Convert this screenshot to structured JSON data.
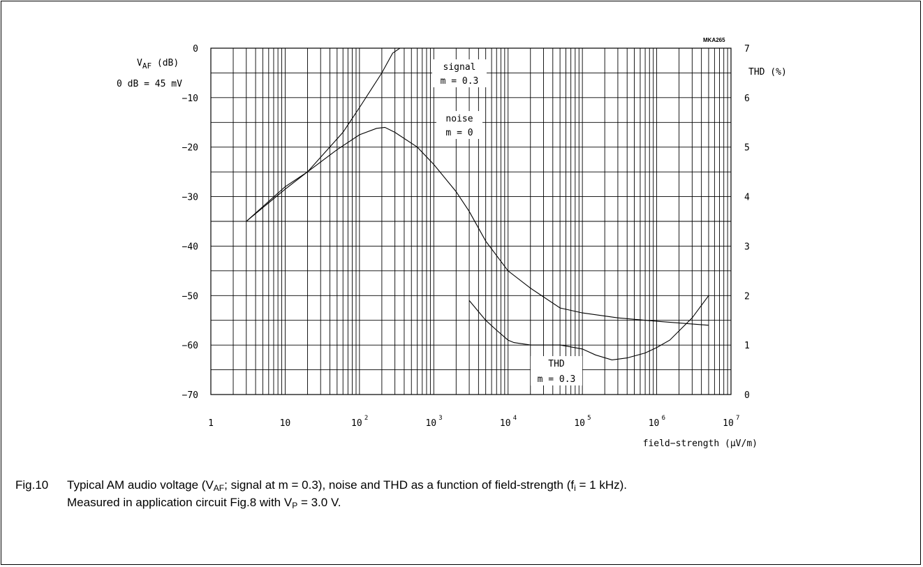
{
  "chart_data": {
    "type": "line",
    "code": "MKA265",
    "xlabel": "field−strength (µV/m)",
    "xscale": "log",
    "xlim": [
      1,
      10000000
    ],
    "x_ticks": [
      {
        "value": 1,
        "base": "1",
        "exp": ""
      },
      {
        "value": 10,
        "base": "10",
        "exp": ""
      },
      {
        "value": 100,
        "base": "10",
        "exp": "2"
      },
      {
        "value": 1000,
        "base": "10",
        "exp": "3"
      },
      {
        "value": 10000,
        "base": "10",
        "exp": "4"
      },
      {
        "value": 100000,
        "base": "10",
        "exp": "5"
      },
      {
        "value": 1000000,
        "base": "10",
        "exp": "6"
      },
      {
        "value": 10000000,
        "base": "10",
        "exp": "7"
      }
    ],
    "ylabel_left": {
      "main": "V",
      "sub": "AF",
      "unit": " (dB)"
    },
    "ylabel_left_note": "0 dB = 45 mV",
    "ylim_left": [
      -70,
      0
    ],
    "y_ticks_left": [
      "0",
      "−10",
      "−20",
      "−30",
      "−40",
      "−50",
      "−60",
      "−70"
    ],
    "ylabel_right": "THD (%)",
    "ylim_right": [
      0,
      7
    ],
    "y_ticks_right": [
      "7",
      "6",
      "5",
      "4",
      "3",
      "2",
      "1",
      "0"
    ],
    "grid": true,
    "series": [
      {
        "name": "signal",
        "label_lines": [
          "signal",
          "m = 0.3"
        ],
        "axis": "left",
        "points": [
          [
            3,
            -35
          ],
          [
            10,
            -28
          ],
          [
            20,
            -25
          ],
          [
            60,
            -17
          ],
          [
            100,
            -12
          ],
          [
            200,
            -5
          ],
          [
            280,
            -1
          ],
          [
            350,
            0
          ],
          [
            1000,
            0
          ],
          [
            10000,
            0
          ],
          [
            100000,
            0
          ],
          [
            1000000,
            0
          ],
          [
            5000000,
            0
          ]
        ]
      },
      {
        "name": "noise",
        "label_lines": [
          "noise",
          "m = 0"
        ],
        "axis": "left",
        "points": [
          [
            3,
            -35
          ],
          [
            10,
            -28.5
          ],
          [
            20,
            -25
          ],
          [
            50,
            -20.5
          ],
          [
            100,
            -17.5
          ],
          [
            170,
            -16.2
          ],
          [
            220,
            -16
          ],
          [
            300,
            -17
          ],
          [
            600,
            -20
          ],
          [
            1000,
            -23.5
          ],
          [
            2000,
            -29
          ],
          [
            3000,
            -33
          ],
          [
            5000,
            -39
          ],
          [
            10000,
            -45
          ],
          [
            20000,
            -48.5
          ],
          [
            50000,
            -52.5
          ],
          [
            100000,
            -53.5
          ],
          [
            300000,
            -54.5
          ],
          [
            1000000,
            -55.2
          ],
          [
            5000000,
            -56
          ]
        ]
      },
      {
        "name": "THD",
        "label_lines": [
          "THD",
          "m = 0.3"
        ],
        "axis": "right",
        "points": [
          [
            3000,
            1.9
          ],
          [
            5000,
            1.5
          ],
          [
            7000,
            1.3
          ],
          [
            10000,
            1.1
          ],
          [
            12000,
            1.05
          ],
          [
            20000,
            1.0
          ],
          [
            50000,
            1.0
          ],
          [
            100000,
            0.92
          ],
          [
            150000,
            0.8
          ],
          [
            250000,
            0.7
          ],
          [
            400000,
            0.74
          ],
          [
            700000,
            0.84
          ],
          [
            1000000,
            0.95
          ],
          [
            1500000,
            1.1
          ],
          [
            3000000,
            1.55
          ],
          [
            5000000,
            2.0
          ]
        ]
      }
    ]
  },
  "caption": {
    "fig": "Fig.10",
    "line1_a": "Typical AM audio voltage (V",
    "line1_sub": "AF",
    "line1_b": "; signal at m = 0.3), noise and THD as a function of field-strength (f",
    "line1_sub2": "i",
    "line1_c": " = 1 kHz).",
    "line2_a": "Measured in application circuit Fig.8 with V",
    "line2_sub": "P",
    "line2_b": " = 3.0 V."
  }
}
